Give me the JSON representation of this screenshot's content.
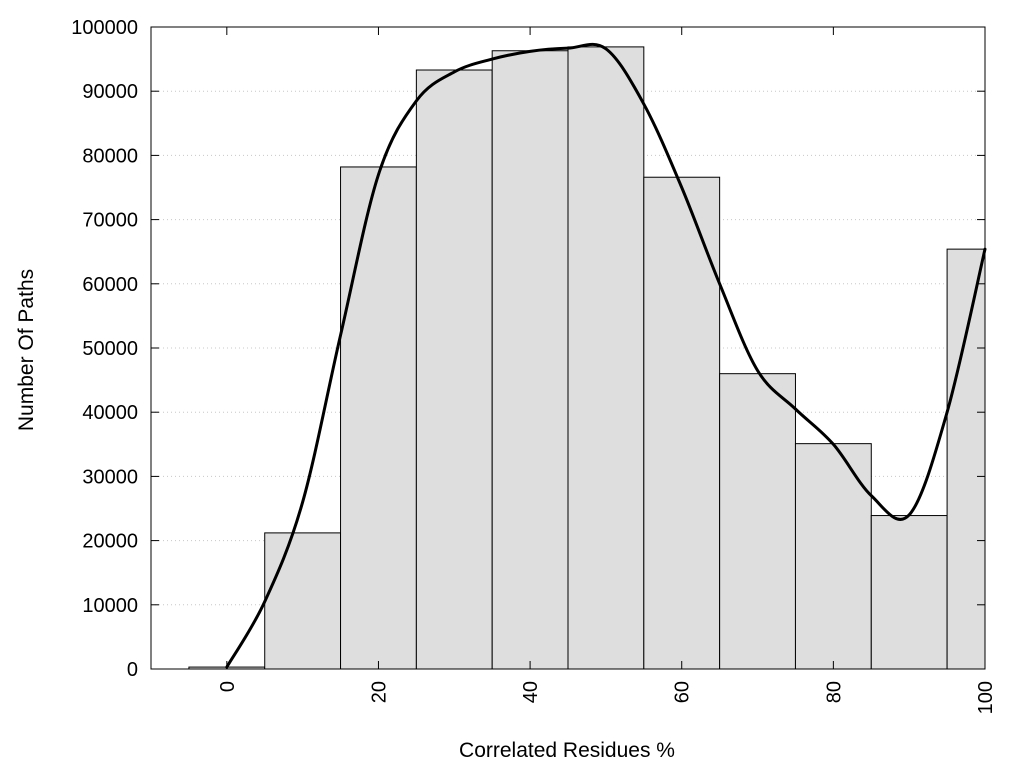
{
  "chart_data": {
    "type": "bar",
    "title": "",
    "xlabel": "Correlated Residues %",
    "ylabel": "Number Of Paths",
    "x": [
      0,
      10,
      20,
      30,
      40,
      50,
      60,
      70,
      80,
      90,
      100
    ],
    "values": [
      300,
      21200,
      78200,
      93300,
      96300,
      96900,
      76600,
      46000,
      35100,
      23900,
      65400
    ],
    "bar_width": 10,
    "xlim": [
      -10,
      100
    ],
    "ylim": [
      0,
      100000
    ],
    "xticks": [
      0,
      20,
      40,
      60,
      80,
      100
    ],
    "yticks": [
      0,
      10000,
      20000,
      30000,
      40000,
      50000,
      60000,
      70000,
      80000,
      90000,
      100000
    ],
    "grid": true,
    "legend": "none",
    "bar_color": "#dedede",
    "smooth_curve": {
      "x": [
        0,
        5,
        10,
        15,
        20,
        25,
        30,
        35,
        40,
        45,
        50,
        55,
        60,
        65,
        70,
        75,
        80,
        85,
        90,
        95,
        100
      ],
      "y": [
        300,
        10500,
        26000,
        52000,
        77000,
        88500,
        93000,
        95000,
        96200,
        96700,
        96600,
        88000,
        75000,
        60000,
        46500,
        40500,
        35000,
        27000,
        24000,
        40000,
        65400
      ],
      "color": "#000000"
    }
  }
}
